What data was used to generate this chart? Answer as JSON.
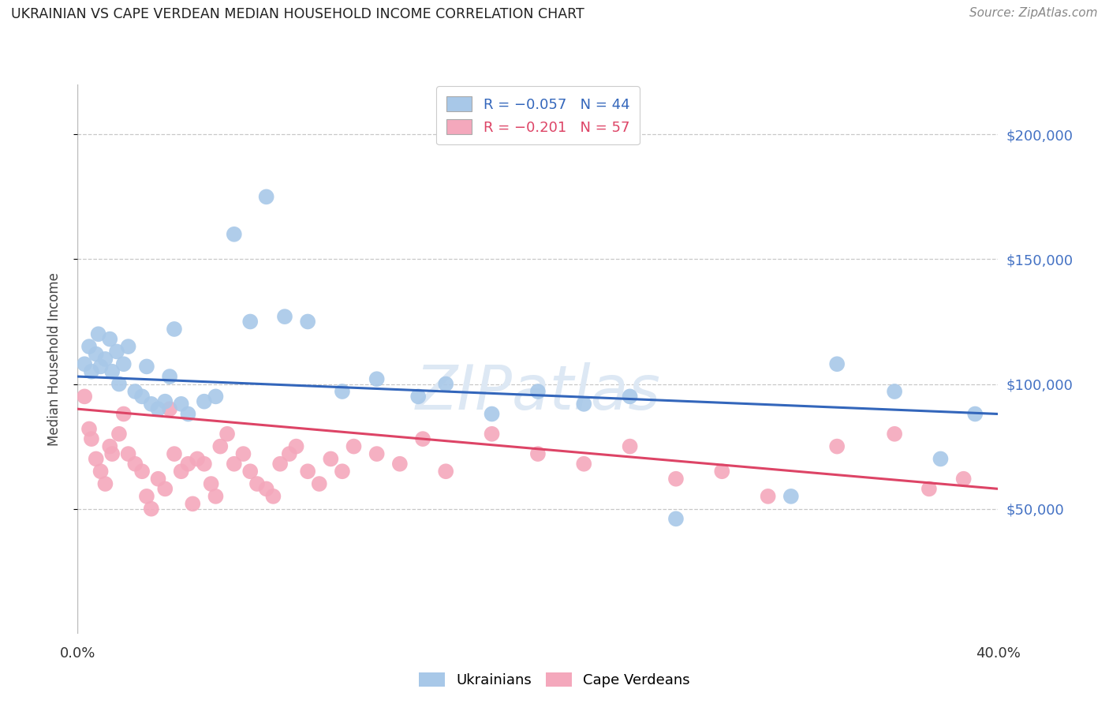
{
  "title": "UKRAINIAN VS CAPE VERDEAN MEDIAN HOUSEHOLD INCOME CORRELATION CHART",
  "source": "Source: ZipAtlas.com",
  "ylabel": "Median Household Income",
  "xlim": [
    0.0,
    0.4
  ],
  "ylim": [
    0,
    220000
  ],
  "yticks": [
    50000,
    100000,
    150000,
    200000
  ],
  "ytick_labels": [
    "$50,000",
    "$100,000",
    "$150,000",
    "$200,000"
  ],
  "background_color": "#ffffff",
  "grid_color": "#c8c8c8",
  "title_color": "#222222",
  "source_color": "#888888",
  "ylabel_color": "#444444",
  "right_tick_color": "#4472c4",
  "ukrainians_color": "#a8c8e8",
  "cape_verdean_color": "#f4a8bc",
  "trendline_ukr_color": "#3366bb",
  "trendline_cape_color": "#dd4466",
  "watermark": "ZIPatlas",
  "watermark_color": "#dde8f4",
  "ukr_R": -0.057,
  "ukr_N": 44,
  "cape_R": -0.201,
  "cape_N": 57,
  "trendline_ukr_y0": 103000,
  "trendline_ukr_y1": 88000,
  "trendline_cape_y0": 90000,
  "trendline_cape_y1": 58000,
  "ukrainians_x": [
    0.003,
    0.005,
    0.006,
    0.008,
    0.009,
    0.01,
    0.012,
    0.014,
    0.015,
    0.017,
    0.018,
    0.02,
    0.022,
    0.025,
    0.028,
    0.03,
    0.032,
    0.035,
    0.038,
    0.04,
    0.042,
    0.045,
    0.048,
    0.055,
    0.06,
    0.068,
    0.075,
    0.082,
    0.09,
    0.1,
    0.115,
    0.13,
    0.148,
    0.16,
    0.18,
    0.2,
    0.22,
    0.24,
    0.26,
    0.31,
    0.33,
    0.355,
    0.375,
    0.39
  ],
  "ukrainians_y": [
    108000,
    115000,
    105000,
    112000,
    120000,
    107000,
    110000,
    118000,
    105000,
    113000,
    100000,
    108000,
    115000,
    97000,
    95000,
    107000,
    92000,
    90000,
    93000,
    103000,
    122000,
    92000,
    88000,
    93000,
    95000,
    160000,
    125000,
    175000,
    127000,
    125000,
    97000,
    102000,
    95000,
    100000,
    88000,
    97000,
    92000,
    95000,
    46000,
    55000,
    108000,
    97000,
    70000,
    88000
  ],
  "cape_verdean_x": [
    0.003,
    0.005,
    0.006,
    0.008,
    0.01,
    0.012,
    0.014,
    0.015,
    0.018,
    0.02,
    0.022,
    0.025,
    0.028,
    0.03,
    0.032,
    0.035,
    0.038,
    0.04,
    0.042,
    0.045,
    0.048,
    0.05,
    0.052,
    0.055,
    0.058,
    0.06,
    0.062,
    0.065,
    0.068,
    0.072,
    0.075,
    0.078,
    0.082,
    0.085,
    0.088,
    0.092,
    0.095,
    0.1,
    0.105,
    0.11,
    0.115,
    0.12,
    0.13,
    0.14,
    0.15,
    0.16,
    0.18,
    0.2,
    0.22,
    0.24,
    0.26,
    0.28,
    0.3,
    0.33,
    0.355,
    0.37,
    0.385
  ],
  "cape_verdean_y": [
    95000,
    82000,
    78000,
    70000,
    65000,
    60000,
    75000,
    72000,
    80000,
    88000,
    72000,
    68000,
    65000,
    55000,
    50000,
    62000,
    58000,
    90000,
    72000,
    65000,
    68000,
    52000,
    70000,
    68000,
    60000,
    55000,
    75000,
    80000,
    68000,
    72000,
    65000,
    60000,
    58000,
    55000,
    68000,
    72000,
    75000,
    65000,
    60000,
    70000,
    65000,
    75000,
    72000,
    68000,
    78000,
    65000,
    80000,
    72000,
    68000,
    75000,
    62000,
    65000,
    55000,
    75000,
    80000,
    58000,
    62000
  ]
}
